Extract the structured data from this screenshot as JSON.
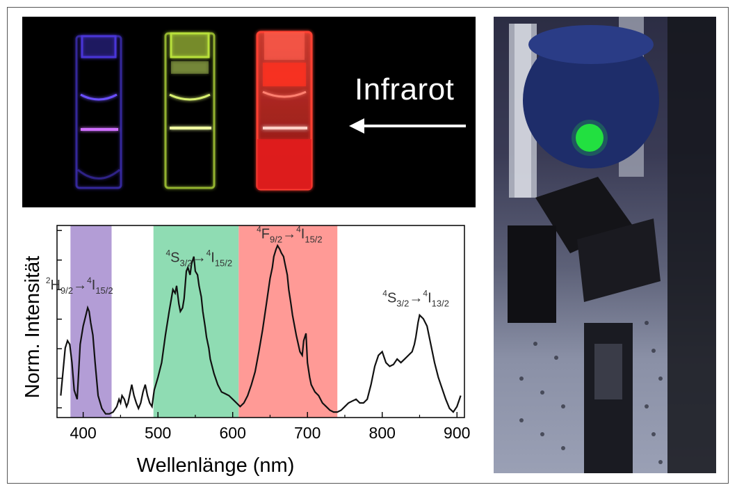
{
  "photo": {
    "label": "Infrarot",
    "cuvette_colors": [
      "#5a3cff",
      "#c8f03a",
      "#ff3a2a"
    ]
  },
  "chart_data": {
    "type": "line",
    "title": "",
    "xlabel": "Wellenlänge (nm)",
    "ylabel": "Norm. Intensität",
    "xlim": [
      365,
      910
    ],
    "ylim": [
      0,
      1.05
    ],
    "xticks": [
      400,
      500,
      600,
      700,
      800,
      900
    ],
    "xtick_labels": [
      "400",
      "500",
      "600",
      "700",
      "800",
      "900"
    ],
    "grid": false,
    "bands": [
      {
        "x_range": [
          383,
          438
        ],
        "color": "#b39dd6",
        "name": "violet"
      },
      {
        "x_range": [
          494,
          608
        ],
        "color": "#8fdcb3",
        "name": "green"
      },
      {
        "x_range": [
          608,
          740
        ],
        "color": "#ff9a96",
        "name": "red"
      }
    ],
    "annotations": [
      {
        "label_main": "2H9/2→4I15/2",
        "x": 395,
        "y": 0.7
      },
      {
        "label_main": "4S3/2→4I15/2",
        "x": 555,
        "y": 0.85
      },
      {
        "label_main": "4F9/2→4I15/2",
        "x": 676,
        "y": 0.98
      },
      {
        "label_main": "4S3/2→4I13/2",
        "x": 845,
        "y": 0.63
      }
    ],
    "series": [
      {
        "x": [
          370,
          373,
          376,
          379,
          382,
          385,
          388,
          392,
          396,
          400,
          403,
          406,
          408,
          410,
          413,
          416,
          420,
          425,
          430,
          435,
          440,
          445,
          448,
          450,
          452,
          455,
          458,
          460,
          463,
          465,
          468,
          471,
          474,
          477,
          480,
          483,
          486,
          489,
          492,
          495,
          500,
          505,
          510,
          515,
          518,
          520,
          523,
          525,
          528,
          530,
          533,
          535,
          538,
          540,
          543,
          545,
          548,
          550,
          553,
          555,
          558,
          560,
          563,
          565,
          568,
          570,
          575,
          580,
          585,
          590,
          595,
          600,
          605,
          610,
          615,
          620,
          625,
          630,
          635,
          640,
          645,
          650,
          653,
          655,
          658,
          660,
          663,
          665,
          668,
          670,
          673,
          675,
          678,
          680,
          685,
          690,
          693,
          695,
          698,
          700,
          703,
          705,
          710,
          715,
          720,
          725,
          730,
          735,
          740,
          745,
          750,
          755,
          760,
          765,
          770,
          775,
          780,
          785,
          790,
          795,
          800,
          805,
          810,
          815,
          820,
          825,
          830,
          835,
          840,
          843,
          845,
          848,
          850,
          855,
          860,
          865,
          870,
          875,
          880,
          885,
          890,
          895,
          900,
          905
        ],
        "y": [
          0.12,
          0.25,
          0.38,
          0.42,
          0.4,
          0.3,
          0.15,
          0.1,
          0.4,
          0.5,
          0.55,
          0.6,
          0.58,
          0.52,
          0.45,
          0.3,
          0.12,
          0.05,
          0.02,
          0.02,
          0.03,
          0.06,
          0.1,
          0.08,
          0.12,
          0.1,
          0.06,
          0.08,
          0.14,
          0.18,
          0.12,
          0.08,
          0.05,
          0.08,
          0.14,
          0.18,
          0.12,
          0.08,
          0.06,
          0.15,
          0.22,
          0.3,
          0.45,
          0.58,
          0.65,
          0.7,
          0.68,
          0.72,
          0.62,
          0.58,
          0.6,
          0.65,
          0.8,
          0.82,
          0.78,
          0.84,
          0.88,
          0.8,
          0.78,
          0.72,
          0.66,
          0.58,
          0.5,
          0.44,
          0.38,
          0.32,
          0.24,
          0.18,
          0.14,
          0.13,
          0.12,
          0.1,
          0.08,
          0.06,
          0.08,
          0.12,
          0.18,
          0.25,
          0.36,
          0.48,
          0.62,
          0.76,
          0.82,
          0.88,
          0.92,
          0.94,
          0.92,
          0.9,
          0.88,
          0.84,
          0.78,
          0.7,
          0.62,
          0.56,
          0.45,
          0.36,
          0.34,
          0.42,
          0.46,
          0.3,
          0.22,
          0.18,
          0.14,
          0.12,
          0.08,
          0.06,
          0.04,
          0.03,
          0.03,
          0.04,
          0.06,
          0.08,
          0.09,
          0.1,
          0.08,
          0.08,
          0.1,
          0.18,
          0.28,
          0.34,
          0.36,
          0.3,
          0.28,
          0.29,
          0.32,
          0.3,
          0.32,
          0.34,
          0.36,
          0.4,
          0.44,
          0.52,
          0.56,
          0.54,
          0.5,
          0.4,
          0.3,
          0.22,
          0.16,
          0.1,
          0.05,
          0.03,
          0.06,
          0.12
        ]
      }
    ]
  }
}
